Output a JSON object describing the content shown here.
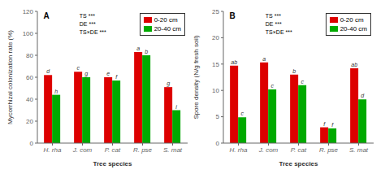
{
  "chart_data": [
    {
      "type": "bar",
      "title": "A",
      "xlabel": "Tree species",
      "ylabel": "Mycorrhizal colonization rate (%)",
      "categories": [
        "H. rha",
        "J. com",
        "P. cat",
        "R. pse",
        "S. mat"
      ],
      "series": [
        {
          "name": "0-20 cm",
          "color": "#dd0000",
          "values": [
            62,
            65,
            60,
            83,
            51
          ],
          "annotations": [
            "d",
            "c",
            "e",
            "a",
            "g"
          ]
        },
        {
          "name": "20-40 cm",
          "color": "#00aa00",
          "values": [
            44,
            60,
            57,
            80,
            30
          ],
          "annotations": [
            "h",
            "g",
            "f",
            "b",
            "i"
          ]
        }
      ],
      "ylim": [
        0,
        120
      ],
      "yticks": [
        0,
        20,
        40,
        60,
        80,
        100,
        120
      ],
      "annotations": [
        "TS ***\nDE ***\nTS×DE ***"
      ],
      "legend": "upper right",
      "grid": false
    },
    {
      "type": "bar",
      "title": "B",
      "xlabel": "Tree species",
      "ylabel": "Spore density (N/g fresh soil)",
      "categories": [
        "H. rha",
        "J. com",
        "P. cat",
        "R. pse",
        "S. mat"
      ],
      "series": [
        {
          "name": "0-20 cm",
          "color": "#dd0000",
          "values": [
            14.7,
            15.3,
            13.0,
            3.0,
            14.2
          ],
          "annotations": [
            "ab",
            "a",
            "b",
            "f",
            "ab"
          ]
        },
        {
          "name": "20-40 cm",
          "color": "#00aa00",
          "values": [
            4.9,
            10.2,
            11.0,
            2.8,
            8.3
          ],
          "annotations": [
            "c",
            "c",
            "c",
            "f",
            "d"
          ]
        }
      ],
      "ylim": [
        0,
        25
      ],
      "yticks": [
        0,
        5,
        10,
        15,
        20,
        25
      ],
      "annotations": [
        "TS ***\nDE ***\nTS×DE ***"
      ],
      "legend": "upper right",
      "grid": false
    }
  ]
}
